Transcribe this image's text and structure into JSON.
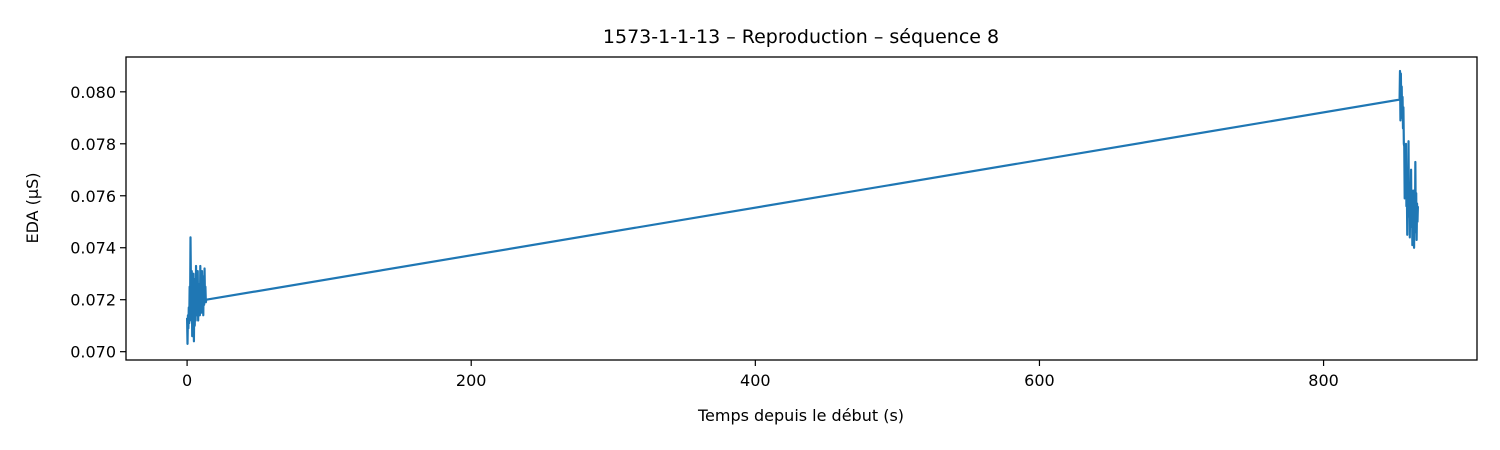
{
  "chart_data": {
    "type": "line",
    "title": "1573-1-1-13 – Reproduction – séquence 8",
    "xlabel": "Temps depuis le début (s)",
    "ylabel": "EDA (µS)",
    "xlim": [
      -43,
      908
    ],
    "ylim": [
      0.06968,
      0.08134
    ],
    "x_ticks": [
      0,
      200,
      400,
      600,
      800
    ],
    "x_tick_labels": [
      "0",
      "200",
      "400",
      "600",
      "800"
    ],
    "y_ticks": [
      0.07,
      0.072,
      0.074,
      0.076,
      0.078,
      0.08
    ],
    "y_tick_labels": [
      "0.070",
      "0.072",
      "0.074",
      "0.076",
      "0.078",
      "0.080"
    ],
    "grid": false,
    "series": [
      {
        "color": "#1f77b4",
        "x": [
          0,
          0.3,
          0.6,
          0.9,
          1.2,
          1.5,
          1.8,
          2.1,
          2.4,
          2.7,
          3.0,
          3.3,
          3.6,
          3.9,
          4.2,
          4.5,
          4.8,
          5.1,
          5.4,
          5.7,
          6.0,
          6.3,
          6.6,
          6.9,
          7.2,
          7.5,
          7.8,
          8.1,
          8.4,
          8.7,
          9.0,
          9.3,
          9.6,
          9.9,
          10.2,
          10.5,
          10.8,
          11.1,
          11.4,
          11.7,
          12.0,
          12.3,
          12.6,
          12.9,
          13.2,
          13.5,
          853.5,
          853.8,
          854.1,
          854.4,
          854.7,
          855.0,
          855.3,
          855.6,
          855.9,
          856.2,
          856.5,
          856.8,
          857.1,
          857.4,
          857.7,
          858.0,
          858.3,
          858.6,
          858.9,
          859.2,
          859.5,
          859.8,
          860.1,
          860.4,
          860.7,
          861.0,
          861.3,
          861.6,
          861.9,
          862.2,
          862.5,
          862.8,
          863.1,
          863.4,
          863.7,
          864.0,
          864.3,
          864.6,
          864.9,
          865.2,
          865.5,
          865.8,
          866.1,
          866.4
        ],
        "y": [
          0.0713,
          0.0703,
          0.0714,
          0.0709,
          0.0717,
          0.0711,
          0.0725,
          0.0716,
          0.0744,
          0.0727,
          0.0712,
          0.0731,
          0.0706,
          0.0725,
          0.0713,
          0.073,
          0.0704,
          0.0722,
          0.071,
          0.0728,
          0.0712,
          0.0733,
          0.0716,
          0.0724,
          0.0714,
          0.0731,
          0.0712,
          0.0726,
          0.0716,
          0.072,
          0.0714,
          0.0733,
          0.0718,
          0.0726,
          0.0715,
          0.0731,
          0.0719,
          0.0724,
          0.0714,
          0.0729,
          0.0718,
          0.0732,
          0.072,
          0.0725,
          0.0719,
          0.072,
          0.0797,
          0.0808,
          0.0789,
          0.0807,
          0.0794,
          0.0802,
          0.079,
          0.0798,
          0.0786,
          0.0794,
          0.078,
          0.0779,
          0.0759,
          0.0772,
          0.0762,
          0.078,
          0.0756,
          0.0765,
          0.0745,
          0.077,
          0.0758,
          0.0781,
          0.0752,
          0.0765,
          0.0744,
          0.076,
          0.0752,
          0.077,
          0.0748,
          0.0762,
          0.0741,
          0.0758,
          0.0745,
          0.0762,
          0.074,
          0.0756,
          0.0746,
          0.0773,
          0.0749,
          0.0761,
          0.0743,
          0.0757,
          0.075,
          0.0756
        ]
      }
    ]
  }
}
